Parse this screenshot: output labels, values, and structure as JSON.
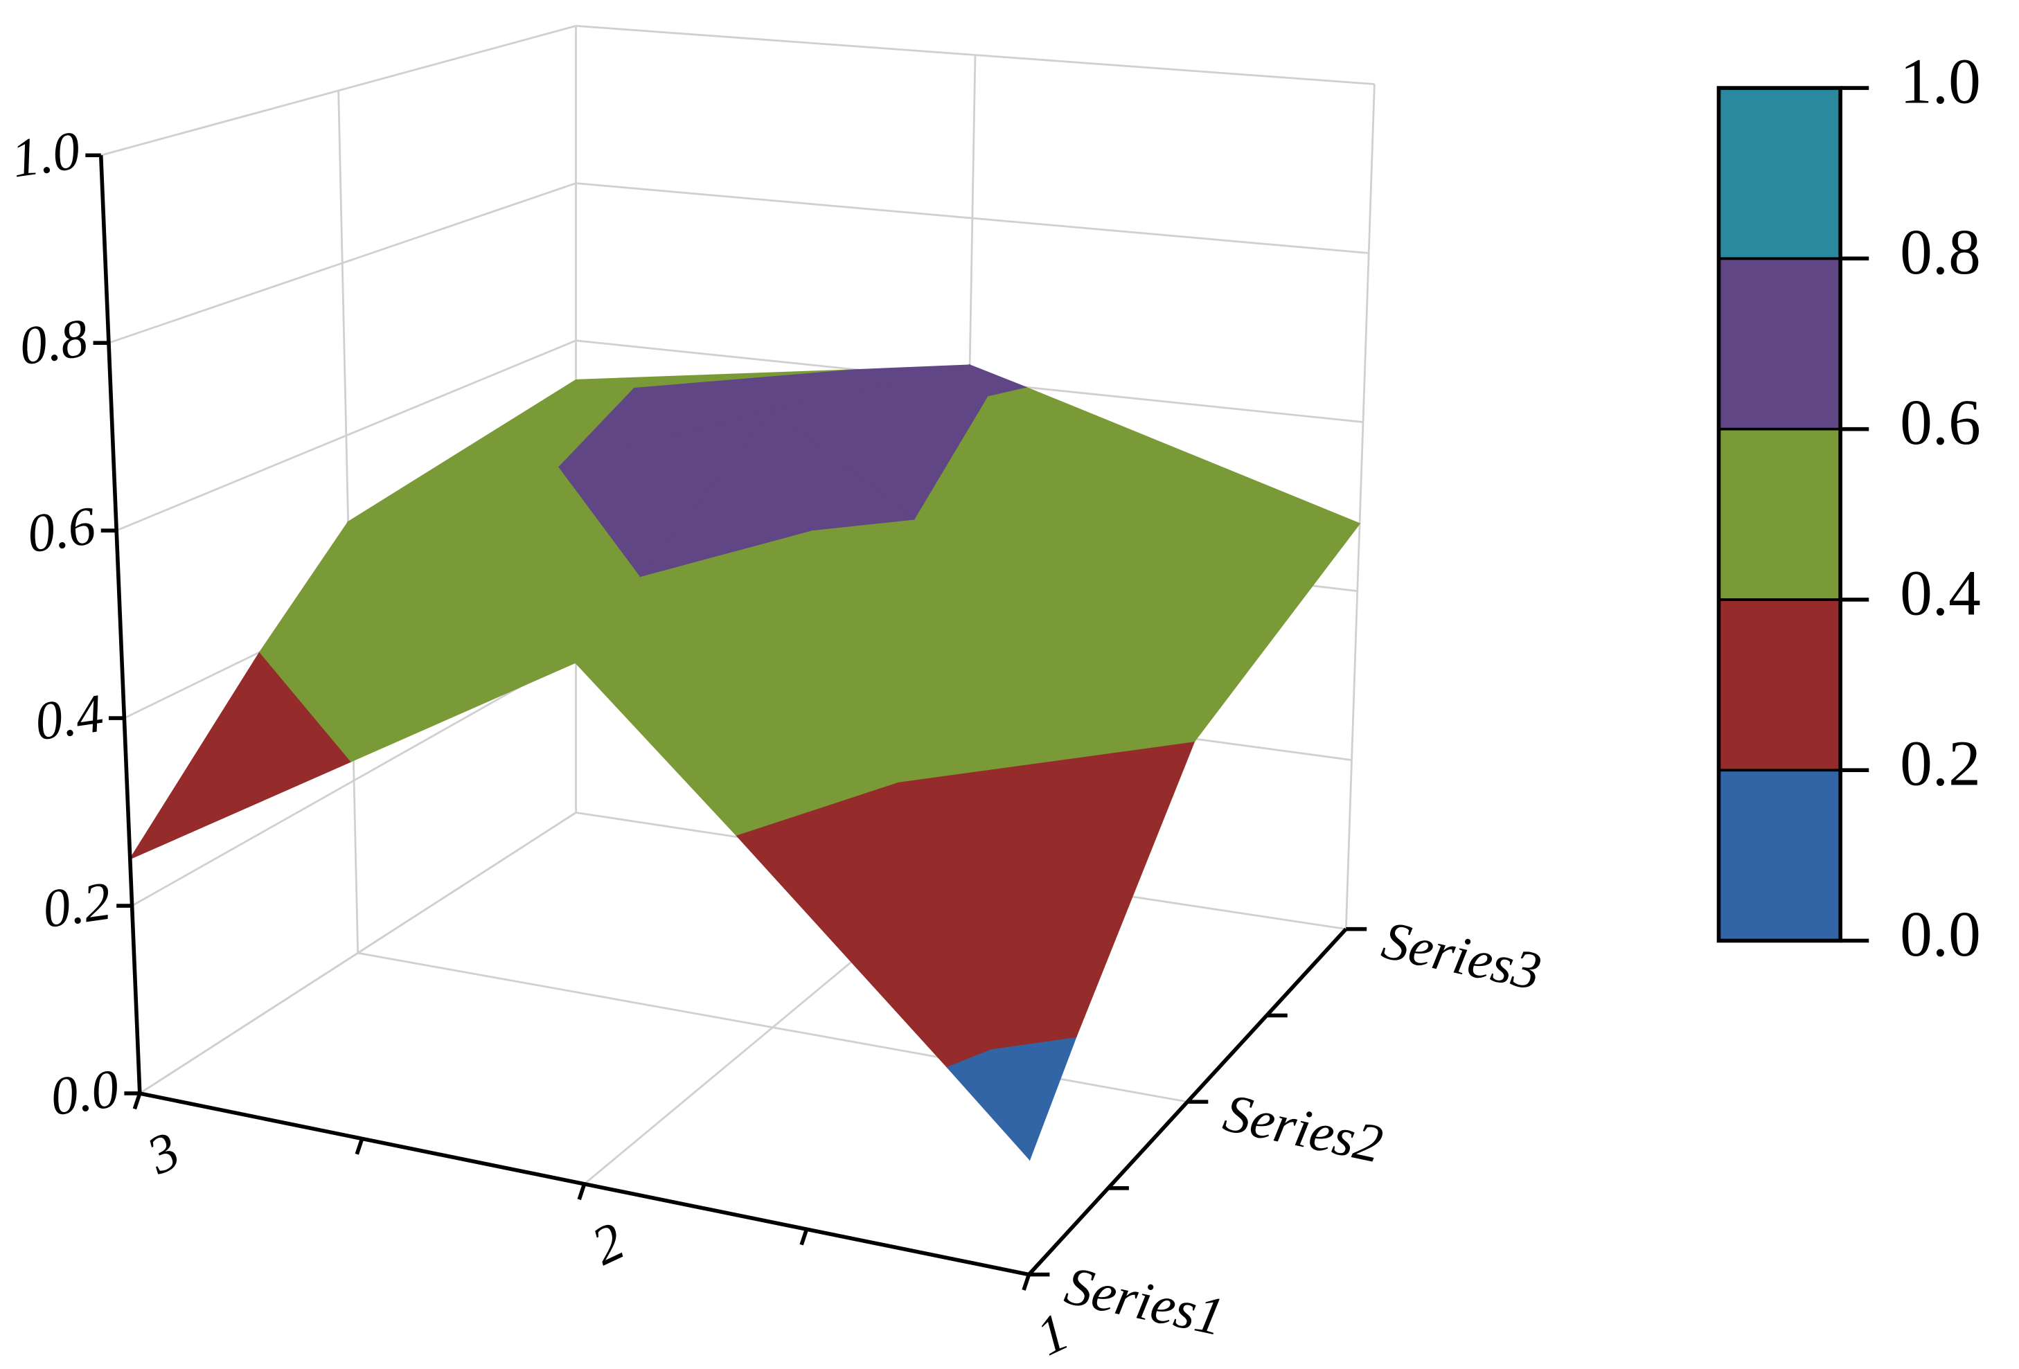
{
  "chart_data": {
    "type": "surface",
    "x": [
      1,
      2,
      3
    ],
    "xlim": [
      1,
      3
    ],
    "xticks": [
      1,
      2,
      3
    ],
    "series": [
      {
        "name": "Series1",
        "values": [
          0.12,
          0.55,
          0.25
        ]
      },
      {
        "name": "Series2",
        "values": [
          0.4,
          0.7,
          0.5
        ]
      },
      {
        "name": "Series3",
        "values": [
          0.48,
          0.62,
          0.55
        ]
      }
    ],
    "zlim": [
      0,
      1
    ],
    "zticks": [
      {
        "value": 0,
        "label": "0.0"
      },
      {
        "value": 0.2,
        "label": "0.2"
      },
      {
        "value": 0.4,
        "label": "0.4"
      },
      {
        "value": 0.6,
        "label": "0.6"
      },
      {
        "value": 0.8,
        "label": "0.8"
      },
      {
        "value": 1,
        "label": "1.0"
      }
    ],
    "colors": [
      "#3265a6",
      "#962b2b",
      "#7a9a38",
      "#614685",
      "#2a889f"
    ],
    "grid": true
  }
}
